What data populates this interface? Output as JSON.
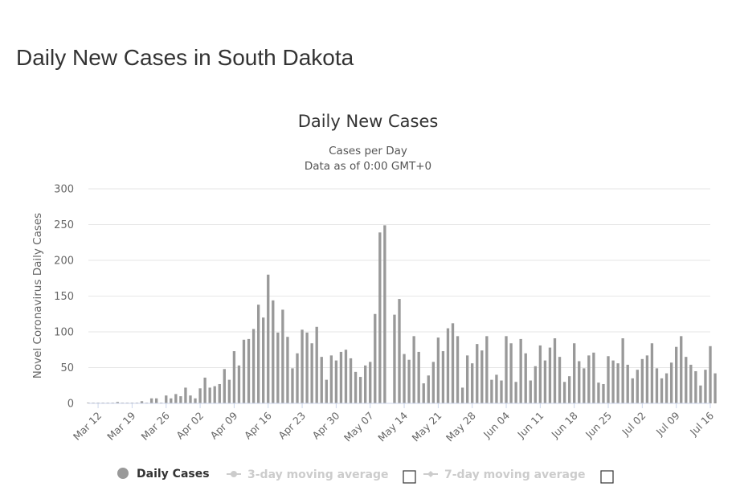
{
  "page": {
    "heading": "Daily New Cases in South Dakota"
  },
  "chart_data": {
    "type": "bar",
    "title": "Daily New Cases",
    "subtitle_lines": [
      "Cases per Day",
      "Data as of 0:00 GMT+0"
    ],
    "ylabel": "Novel Coronavirus Daily Cases",
    "ylim": [
      0,
      300
    ],
    "y_ticks": [
      0,
      50,
      100,
      150,
      200,
      250,
      300
    ],
    "x_range": [
      "2020-03-10",
      "2020-07-16"
    ],
    "x_tick_labels": [
      "Mar 12",
      "Mar 19",
      "Mar 26",
      "Apr 02",
      "Apr 09",
      "Apr 16",
      "Apr 23",
      "Apr 30",
      "May 07",
      "May 14",
      "May 21",
      "May 28",
      "Jun 04",
      "Jun 11",
      "Jun 18",
      "Jun 25",
      "Jul 02",
      "Jul 09",
      "Jul 16"
    ],
    "x_tick_dates": [
      "2020-03-12",
      "2020-03-19",
      "2020-03-26",
      "2020-04-02",
      "2020-04-09",
      "2020-04-16",
      "2020-04-23",
      "2020-04-30",
      "2020-05-07",
      "2020-05-14",
      "2020-05-21",
      "2020-05-28",
      "2020-06-04",
      "2020-06-11",
      "2020-06-18",
      "2020-06-25",
      "2020-07-02",
      "2020-07-09",
      "2020-07-16"
    ],
    "grid": true,
    "bar_color": "#999999",
    "series": [
      {
        "name": "Daily Cases",
        "color": "#999999",
        "points": [
          [
            "2020-03-10",
            1
          ],
          [
            "2020-03-11",
            1
          ],
          [
            "2020-03-12",
            1
          ],
          [
            "2020-03-13",
            1
          ],
          [
            "2020-03-14",
            1
          ],
          [
            "2020-03-15",
            1
          ],
          [
            "2020-03-16",
            2
          ],
          [
            "2020-03-17",
            1
          ],
          [
            "2020-03-18",
            1
          ],
          [
            "2020-03-19",
            1
          ],
          [
            "2020-03-20",
            1
          ],
          [
            "2020-03-21",
            3
          ],
          [
            "2020-03-22",
            1
          ],
          [
            "2020-03-23",
            7
          ],
          [
            "2020-03-24",
            7
          ],
          [
            "2020-03-25",
            1
          ],
          [
            "2020-03-26",
            11
          ],
          [
            "2020-03-27",
            7
          ],
          [
            "2020-03-28",
            13
          ],
          [
            "2020-03-29",
            10
          ],
          [
            "2020-03-30",
            22
          ],
          [
            "2020-03-31",
            11
          ],
          [
            "2020-04-01",
            7
          ],
          [
            "2020-04-02",
            21
          ],
          [
            "2020-04-03",
            36
          ],
          [
            "2020-04-04",
            22
          ],
          [
            "2020-04-05",
            24
          ],
          [
            "2020-04-06",
            27
          ],
          [
            "2020-04-07",
            48
          ],
          [
            "2020-04-08",
            33
          ],
          [
            "2020-04-09",
            73
          ],
          [
            "2020-04-10",
            53
          ],
          [
            "2020-04-11",
            89
          ],
          [
            "2020-04-12",
            90
          ],
          [
            "2020-04-13",
            104
          ],
          [
            "2020-04-14",
            138
          ],
          [
            "2020-04-15",
            120
          ],
          [
            "2020-04-16",
            180
          ],
          [
            "2020-04-17",
            144
          ],
          [
            "2020-04-18",
            99
          ],
          [
            "2020-04-19",
            131
          ],
          [
            "2020-04-20",
            93
          ],
          [
            "2020-04-21",
            49
          ],
          [
            "2020-04-22",
            70
          ],
          [
            "2020-04-23",
            103
          ],
          [
            "2020-04-24",
            99
          ],
          [
            "2020-04-25",
            84
          ],
          [
            "2020-04-26",
            107
          ],
          [
            "2020-04-27",
            65
          ],
          [
            "2020-04-28",
            33
          ],
          [
            "2020-04-29",
            67
          ],
          [
            "2020-04-30",
            60
          ],
          [
            "2020-05-01",
            72
          ],
          [
            "2020-05-02",
            75
          ],
          [
            "2020-05-03",
            63
          ],
          [
            "2020-05-04",
            44
          ],
          [
            "2020-05-05",
            37
          ],
          [
            "2020-05-06",
            53
          ],
          [
            "2020-05-07",
            58
          ],
          [
            "2020-05-08",
            125
          ],
          [
            "2020-05-09",
            239
          ],
          [
            "2020-05-10",
            249
          ],
          [
            "2020-05-11",
            0
          ],
          [
            "2020-05-12",
            124
          ],
          [
            "2020-05-13",
            146
          ],
          [
            "2020-05-14",
            69
          ],
          [
            "2020-05-15",
            61
          ],
          [
            "2020-05-16",
            94
          ],
          [
            "2020-05-17",
            72
          ],
          [
            "2020-05-18",
            28
          ],
          [
            "2020-05-19",
            39
          ],
          [
            "2020-05-20",
            58
          ],
          [
            "2020-05-21",
            92
          ],
          [
            "2020-05-22",
            73
          ],
          [
            "2020-05-23",
            105
          ],
          [
            "2020-05-24",
            112
          ],
          [
            "2020-05-25",
            94
          ],
          [
            "2020-05-26",
            22
          ],
          [
            "2020-05-27",
            67
          ],
          [
            "2020-05-28",
            56
          ],
          [
            "2020-05-29",
            83
          ],
          [
            "2020-05-30",
            74
          ],
          [
            "2020-05-31",
            94
          ],
          [
            "2020-06-01",
            33
          ],
          [
            "2020-06-02",
            40
          ],
          [
            "2020-06-03",
            32
          ],
          [
            "2020-06-04",
            94
          ],
          [
            "2020-06-05",
            84
          ],
          [
            "2020-06-06",
            30
          ],
          [
            "2020-06-07",
            90
          ],
          [
            "2020-06-08",
            70
          ],
          [
            "2020-06-09",
            32
          ],
          [
            "2020-06-10",
            52
          ],
          [
            "2020-06-11",
            81
          ],
          [
            "2020-06-12",
            60
          ],
          [
            "2020-06-13",
            78
          ],
          [
            "2020-06-14",
            91
          ],
          [
            "2020-06-15",
            65
          ],
          [
            "2020-06-16",
            30
          ],
          [
            "2020-06-17",
            38
          ],
          [
            "2020-06-18",
            84
          ],
          [
            "2020-06-19",
            59
          ],
          [
            "2020-06-20",
            49
          ],
          [
            "2020-06-21",
            67
          ],
          [
            "2020-06-22",
            71
          ],
          [
            "2020-06-23",
            29
          ],
          [
            "2020-06-24",
            27
          ],
          [
            "2020-06-25",
            66
          ],
          [
            "2020-06-26",
            60
          ],
          [
            "2020-06-27",
            56
          ],
          [
            "2020-06-28",
            91
          ],
          [
            "2020-06-29",
            54
          ],
          [
            "2020-06-30",
            35
          ],
          [
            "2020-07-01",
            47
          ],
          [
            "2020-07-02",
            62
          ],
          [
            "2020-07-03",
            67
          ],
          [
            "2020-07-04",
            84
          ],
          [
            "2020-07-05",
            49
          ],
          [
            "2020-07-06",
            35
          ],
          [
            "2020-07-07",
            42
          ],
          [
            "2020-07-08",
            57
          ],
          [
            "2020-07-09",
            79
          ],
          [
            "2020-07-10",
            94
          ],
          [
            "2020-07-11",
            65
          ],
          [
            "2020-07-12",
            54
          ],
          [
            "2020-07-13",
            45
          ],
          [
            "2020-07-14",
            25
          ],
          [
            "2020-07-15",
            47
          ],
          [
            "2020-07-16",
            80
          ],
          [
            "2020-07-17",
            42
          ]
        ]
      }
    ],
    "legend": {
      "placement": "bottom-center",
      "items": [
        {
          "label": "Daily Cases",
          "active": true,
          "color": "#999999"
        },
        {
          "label": "3-day moving average",
          "active": false,
          "color": "#cccccc"
        },
        {
          "label": "7-day moving average",
          "active": false,
          "color": "#cccccc"
        }
      ]
    }
  }
}
